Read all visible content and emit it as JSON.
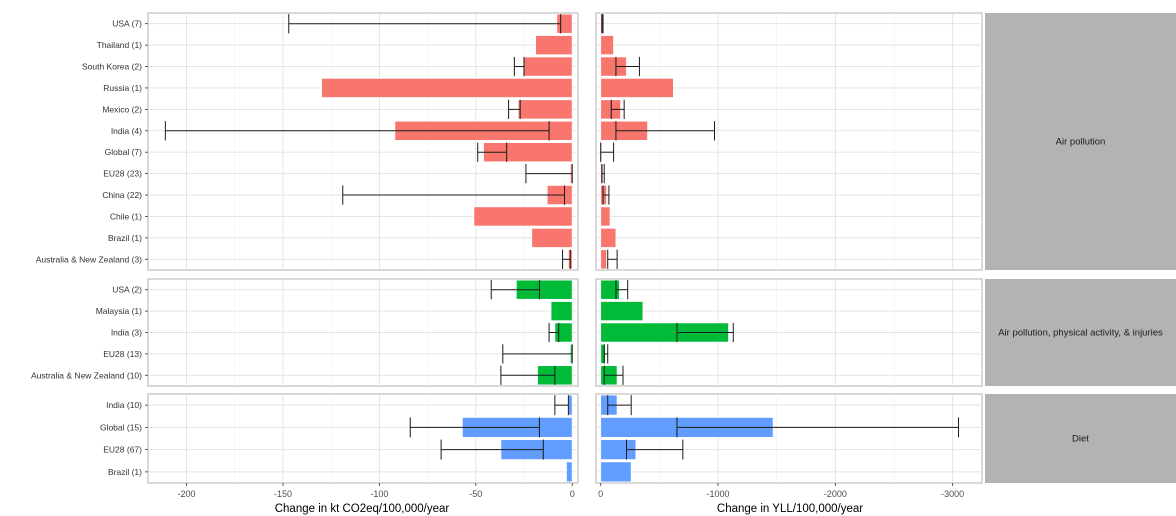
{
  "chart_data": {
    "type": "bar",
    "orientation": "horizontal",
    "facets": "rows by pathway, columns by outcome",
    "grid": true,
    "legend": "none",
    "colors": {
      "Air pollution": "#F8766D",
      "Air pollution, physical activity, & injuries": "#00BA38",
      "Diet": "#619CFF"
    },
    "columns": [
      {
        "key": "co2",
        "xlabel": "Change in kt CO2eq/100,000/year",
        "xlim": [
          -220,
          3
        ],
        "x_reversed": false,
        "ticks": [
          -200,
          -150,
          -100,
          -50,
          0
        ],
        "tick_labels": [
          "-200",
          "-150",
          "-100",
          "-50",
          "0"
        ]
      },
      {
        "key": "yll",
        "xlabel": "Change in YLL/100,000/year",
        "xlim": [
          40,
          -3250
        ],
        "x_reversed": true,
        "ticks": [
          0,
          -1000,
          -2000,
          -3000
        ],
        "tick_labels": [
          "0",
          "-1000",
          "-2000",
          "-3000"
        ]
      }
    ],
    "panels": [
      {
        "strip": "Air pollution",
        "categories": [
          "USA (7)",
          "Thailand (1)",
          "South Korea (2)",
          "Russia (1)",
          "Mexico (2)",
          "India (4)",
          "Global (7)",
          "EU28 (23)",
          "China (22)",
          "Chile (1)",
          "Brazil (1)",
          "Australia & New Zealand (3)"
        ],
        "co2": {
          "values": [
            -8,
            -19,
            -25,
            -130,
            -28,
            -92,
            -46,
            -1,
            -13,
            -51,
            -21,
            -2
          ],
          "error_low": [
            -147,
            null,
            -30,
            null,
            -33,
            -211,
            -49,
            -24,
            -119,
            null,
            null,
            -5
          ],
          "error_high": [
            -6,
            null,
            -25,
            null,
            -27,
            -12,
            -34,
            0,
            -4,
            null,
            null,
            -1
          ]
        },
        "yll": {
          "values": [
            -20,
            -110,
            -220,
            -620,
            -170,
            -400,
            -10,
            -20,
            -50,
            -80,
            -130,
            -50
          ],
          "error_low": [
            -20,
            null,
            -330,
            null,
            -200,
            -970,
            -110,
            -30,
            -70,
            null,
            null,
            -140
          ],
          "error_high": [
            -10,
            null,
            -130,
            null,
            -90,
            -130,
            0,
            -10,
            -20,
            null,
            null,
            -60
          ]
        }
      },
      {
        "strip": "Air pollution, physical activity, & injuries",
        "categories": [
          "USA (2)",
          "Malaysia (1)",
          "India (3)",
          "EU28 (13)",
          "Australia & New Zealand (10)"
        ],
        "co2": {
          "values": [
            -29,
            -11,
            -9,
            -1,
            -18
          ],
          "error_low": [
            -42,
            null,
            -12,
            -36,
            -37
          ],
          "error_high": [
            -17,
            null,
            -7,
            0,
            -9
          ]
        },
        "yll": {
          "values": [
            -160,
            -360,
            -1090,
            -40,
            -140
          ],
          "error_low": [
            -230,
            null,
            -1130,
            -60,
            -190
          ],
          "error_high": [
            -130,
            null,
            -650,
            -30,
            -30
          ]
        }
      },
      {
        "strip": "Diet",
        "categories": [
          "India (10)",
          "Global (15)",
          "EU28 (67)",
          "Brazil (1)"
        ],
        "co2": {
          "values": [
            -2,
            -57,
            -37,
            -3
          ],
          "error_low": [
            -9,
            -84,
            -68,
            null
          ],
          "error_high": [
            -2,
            -17,
            -15,
            null
          ]
        },
        "yll": {
          "values": [
            -140,
            -1470,
            -300,
            -260
          ],
          "error_low": [
            -260,
            -3050,
            -700,
            null
          ],
          "error_high": [
            -60,
            -650,
            -220,
            null
          ]
        }
      }
    ]
  }
}
